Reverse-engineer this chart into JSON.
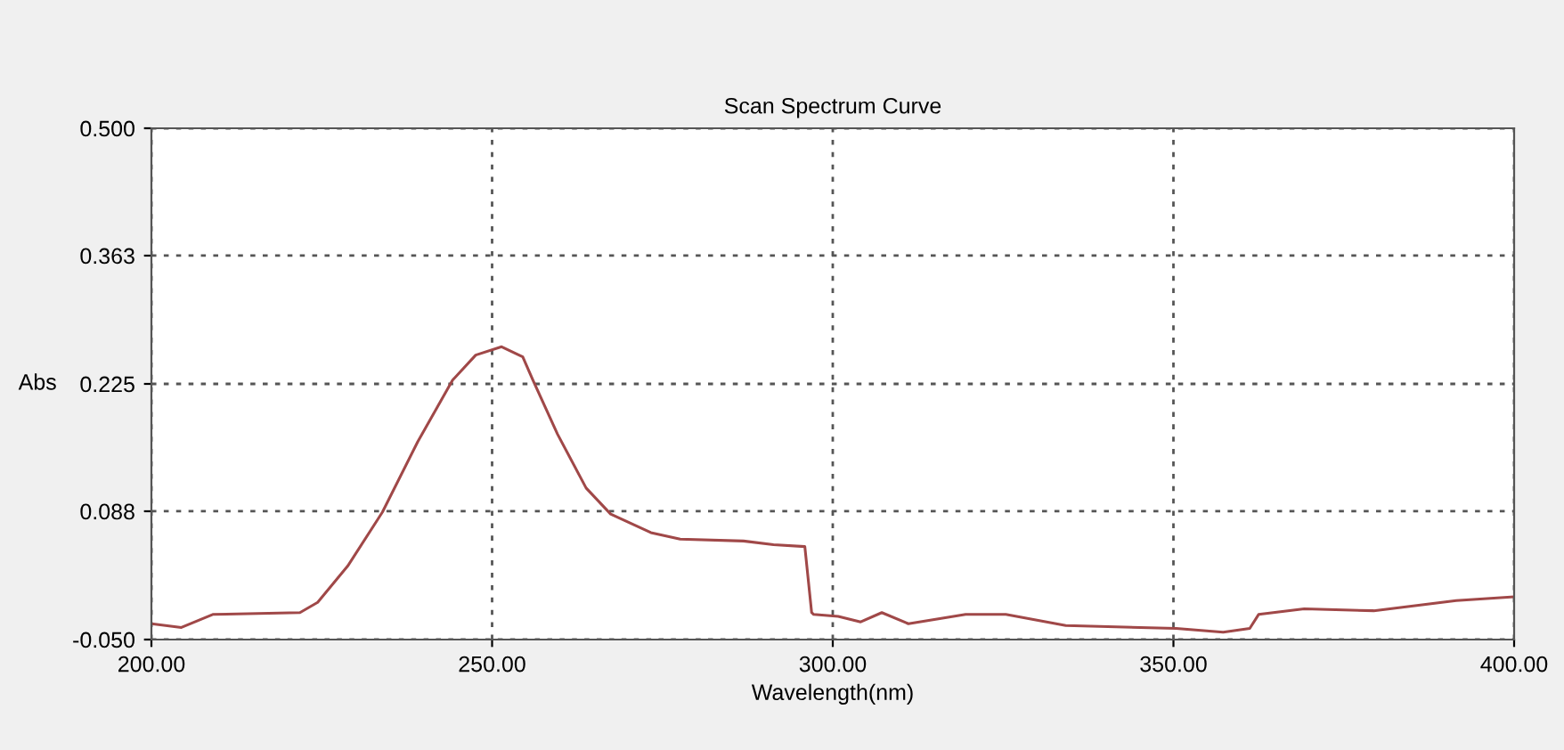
{
  "chart_data": {
    "type": "line",
    "title": "Scan Spectrum Curve",
    "xlabel": "Wavelength(nm)",
    "ylabel": "Abs",
    "x": [
      200,
      204.4,
      209,
      221.8,
      224.4,
      228.8,
      233.9,
      239.1,
      244.2,
      247.6,
      251.4,
      254.5,
      256.0,
      259.6,
      263.8,
      267.4,
      273.3,
      277.6,
      286.9,
      291.3,
      295.9,
      296.9,
      297.2,
      300.8,
      304.1,
      307.2,
      311.1,
      319.5,
      325.4,
      334.2,
      350.4,
      357.3,
      361.2,
      362.5,
      369.2,
      379.4,
      391.5,
      400
    ],
    "series": [
      {
        "color": "#a04848",
        "values": [
          -0.033,
          -0.037,
          -0.023,
          -0.021,
          -0.01,
          0.029,
          0.087,
          0.163,
          0.229,
          0.256,
          0.265,
          0.254,
          0.229,
          0.171,
          0.113,
          0.085,
          0.065,
          0.058,
          0.056,
          0.052,
          0.05,
          -0.021,
          -0.023,
          -0.025,
          -0.031,
          -0.021,
          -0.033,
          -0.023,
          -0.023,
          -0.035,
          -0.038,
          -0.042,
          -0.038,
          -0.023,
          -0.017,
          -0.019,
          -0.008,
          -0.004
        ]
      }
    ],
    "xlim": [
      200,
      400
    ],
    "ylim": [
      -0.05,
      0.5
    ],
    "xticks": [
      {
        "value": 200,
        "label": "200.00"
      },
      {
        "value": 250,
        "label": "250.00"
      },
      {
        "value": 300,
        "label": "300.00"
      },
      {
        "value": 350,
        "label": "350.00"
      },
      {
        "value": 400,
        "label": "400.00"
      }
    ],
    "yticks": [
      {
        "value": -0.05,
        "label": "-0.050"
      },
      {
        "value": 0.088,
        "label": "0.088"
      },
      {
        "value": 0.225,
        "label": "0.225"
      },
      {
        "value": 0.363,
        "label": "0.363"
      },
      {
        "value": 0.5,
        "label": "0.500"
      }
    ],
    "grid": true,
    "line_style": "solid"
  }
}
